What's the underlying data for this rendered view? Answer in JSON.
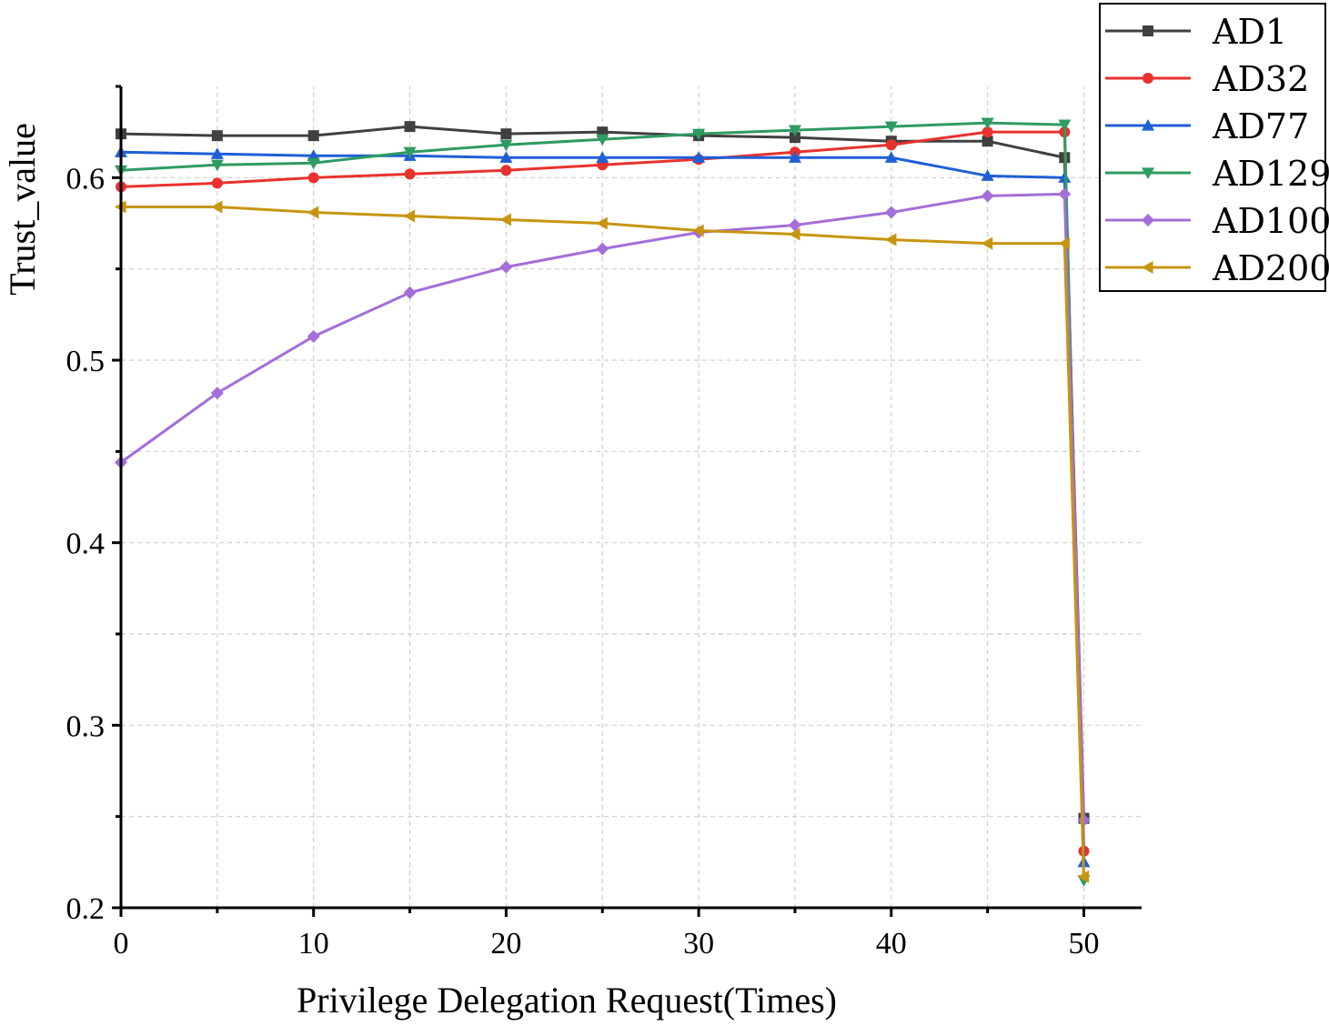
{
  "chart_data": {
    "type": "line",
    "title": "",
    "xlabel": "Privilege Delegation Request(Times)",
    "ylabel": "Trust_value",
    "xlim": [
      0,
      53
    ],
    "ylim": [
      0.2,
      0.65
    ],
    "xticks": [
      0,
      10,
      20,
      30,
      40,
      50
    ],
    "yticks": [
      0.2,
      0.3,
      0.4,
      0.5,
      0.6
    ],
    "x_tick_labels": [
      "0",
      "10",
      "20",
      "30",
      "40",
      "50"
    ],
    "y_tick_labels": [
      "0.2",
      "0.3",
      "0.4",
      "0.5",
      "0.6"
    ],
    "grid": true,
    "legend_position": "top-right, outside plot",
    "x": [
      0,
      5,
      10,
      15,
      20,
      25,
      30,
      35,
      40,
      45,
      49,
      50
    ],
    "series": [
      {
        "name": "AD1",
        "color": "#404040",
        "marker": "square",
        "values": [
          0.624,
          0.623,
          0.623,
          0.628,
          0.624,
          0.625,
          0.623,
          0.622,
          0.62,
          0.62,
          0.611,
          0.249
        ]
      },
      {
        "name": "AD32",
        "color": "#e8322e",
        "marker": "circle",
        "values": [
          0.595,
          0.597,
          0.6,
          0.602,
          0.604,
          0.607,
          0.61,
          0.614,
          0.618,
          0.625,
          0.625,
          0.231
        ]
      },
      {
        "name": "AD77",
        "color": "#1f5fd6",
        "marker": "triangle-up",
        "values": [
          0.614,
          0.613,
          0.612,
          0.612,
          0.611,
          0.611,
          0.611,
          0.611,
          0.611,
          0.601,
          0.6,
          0.225
        ]
      },
      {
        "name": "AD129",
        "color": "#2e9b62",
        "marker": "triangle-down",
        "values": [
          0.604,
          0.607,
          0.608,
          0.614,
          0.618,
          0.621,
          0.624,
          0.626,
          0.628,
          0.63,
          0.629,
          0.215
        ]
      },
      {
        "name": "AD100",
        "color": "#a46ed8",
        "marker": "diamond",
        "values": [
          0.444,
          0.482,
          0.513,
          0.537,
          0.551,
          0.561,
          0.57,
          0.574,
          0.581,
          0.59,
          0.591,
          0.248
        ]
      },
      {
        "name": "AD200",
        "color": "#c7950f",
        "marker": "triangle-left",
        "values": [
          0.584,
          0.584,
          0.581,
          0.579,
          0.577,
          0.575,
          0.571,
          0.569,
          0.566,
          0.564,
          0.564,
          0.217
        ]
      }
    ]
  }
}
